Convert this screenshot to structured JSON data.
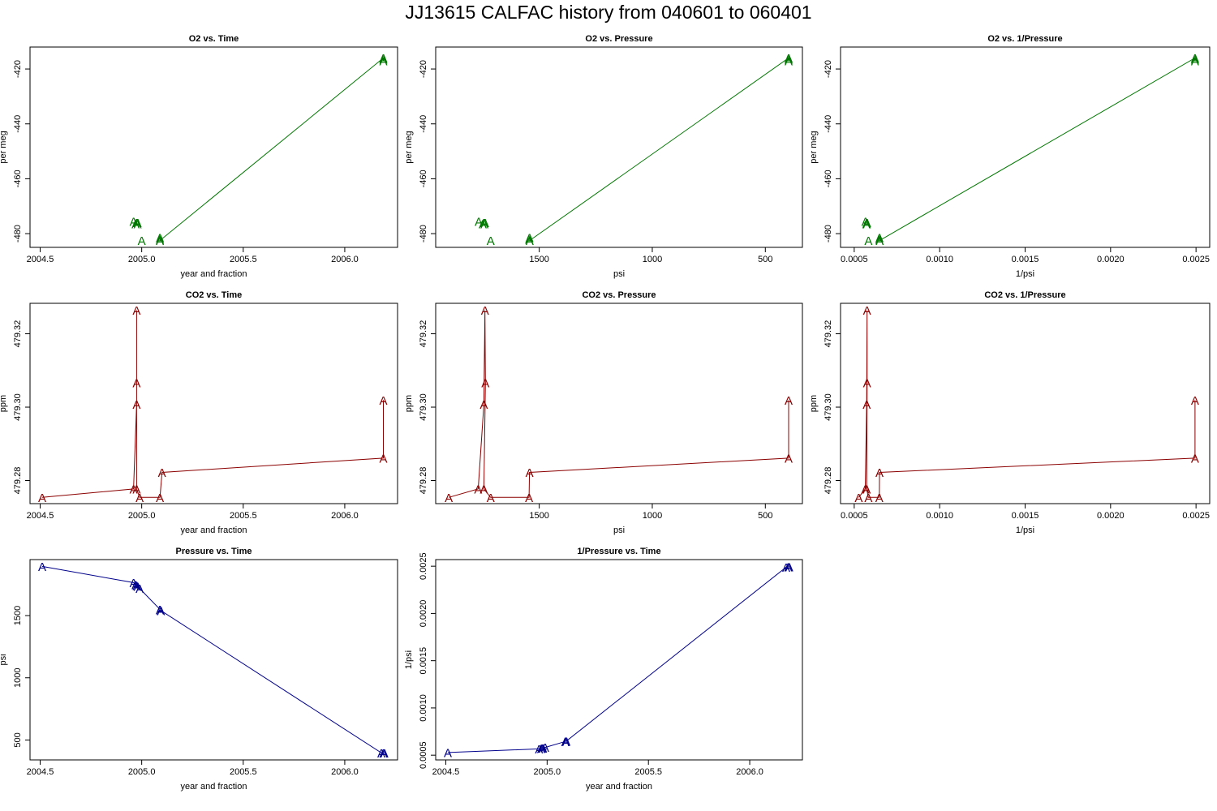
{
  "title": "JJ13615   CALFAC history from  040601  to  060401",
  "colors": {
    "o2": "#007700",
    "co2": "#8b0000",
    "pressure": "#00008b",
    "axis": "#000000"
  },
  "chart_data": [
    {
      "type": "line",
      "title": "O2 vs. Time",
      "xlabel": "year and fraction",
      "ylabel": "per meg",
      "marker": "A",
      "color": "#007700",
      "xlim": [
        2004.45,
        2006.26
      ],
      "ylim": [
        -485.0,
        -412.0
      ],
      "xticks": [
        2004.5,
        2005.0,
        2005.5,
        2006.0
      ],
      "xtick_labels": [
        "2004.5",
        "2005.0",
        "2005.5",
        "2006.0"
      ],
      "yticks": [
        -420,
        -440,
        -460,
        -480
      ],
      "ytick_labels": [
        "-420",
        "-440",
        "-460",
        "-480"
      ],
      "x": [
        2004.96,
        2004.97,
        2004.975,
        2004.98,
        2004.98,
        2005.0,
        2005.09,
        2005.09,
        2005.09,
        2006.19,
        2006.19,
        2006.19
      ],
      "y": [
        -475.5,
        -476.5,
        -476.0,
        -476.5,
        -476.0,
        -482.5,
        -482.0,
        -481.5,
        -482.5,
        -416.0,
        -416.5,
        -417.0
      ],
      "line_from": 6
    },
    {
      "type": "line",
      "title": "O2 vs. Pressure",
      "xlabel": "psi",
      "ylabel": "per meg",
      "marker": "A",
      "color": "#007700",
      "xlim": [
        1958.0,
        336.0
      ],
      "ylim": [
        -485.0,
        -412.0
      ],
      "xticks": [
        1500,
        1000,
        500
      ],
      "xtick_labels": [
        "1500",
        "1000",
        "500"
      ],
      "yticks": [
        -420,
        -440,
        -460,
        -480
      ],
      "ytick_labels": [
        "-420",
        "-440",
        "-460",
        "-480"
      ],
      "x": [
        1768,
        1750,
        1745,
        1742,
        1740,
        1715,
        1545,
        1543,
        1542,
        397,
        397,
        397
      ],
      "y": [
        -475.5,
        -476.5,
        -476.0,
        -476.5,
        -476.0,
        -482.5,
        -482.0,
        -481.5,
        -482.5,
        -416.0,
        -416.5,
        -417.0
      ],
      "line_from": 6
    },
    {
      "type": "line",
      "title": "O2 vs. 1/Pressure",
      "xlabel": "1/psi",
      "ylabel": "per meg",
      "marker": "A",
      "color": "#007700",
      "xlim": [
        0.00042,
        0.00258
      ],
      "ylim": [
        -485.0,
        -412.0
      ],
      "xticks": [
        0.0005,
        0.001,
        0.0015,
        0.002,
        0.0025
      ],
      "xtick_labels": [
        "0.0005",
        "0.0010",
        "0.0015",
        "0.0020",
        "0.0025"
      ],
      "yticks": [
        -420,
        -440,
        -460,
        -480
      ],
      "ytick_labels": [
        "-420",
        "-440",
        "-460",
        "-480"
      ],
      "x": [
        0.000566,
        0.000571,
        0.000573,
        0.000574,
        0.000575,
        0.000583,
        0.000647,
        0.000648,
        0.000649,
        0.002494,
        0.002494,
        0.002494
      ],
      "y": [
        -475.5,
        -476.5,
        -476.0,
        -476.5,
        -476.0,
        -482.5,
        -482.0,
        -481.5,
        -482.5,
        -416.0,
        -416.5,
        -417.0
      ],
      "line_from": 6
    },
    {
      "type": "line",
      "title": "CO2 vs. Time",
      "xlabel": "year and fraction",
      "ylabel": "ppm",
      "marker": "A",
      "color": "#8b0000",
      "xlim": [
        2004.45,
        2006.26
      ],
      "ylim": [
        479.2737,
        479.3283
      ],
      "xticks": [
        2004.5,
        2005.0,
        2005.5,
        2006.0
      ],
      "xtick_labels": [
        "2004.5",
        "2005.0",
        "2005.5",
        "2006.0"
      ],
      "yticks": [
        479.28,
        479.3,
        479.32
      ],
      "ytick_labels": [
        "479.28",
        "479.30",
        "479.32"
      ],
      "x": [
        2004.51,
        2004.96,
        2004.975,
        2004.975,
        2004.975,
        2004.975,
        2004.99,
        2005.09,
        2005.1,
        2006.19,
        2006.19
      ],
      "y": [
        479.2754,
        479.2777,
        479.3008,
        479.3264,
        479.3066,
        479.2777,
        479.2754,
        479.2754,
        479.2822,
        479.2861,
        479.3019
      ],
      "line_from": 0
    },
    {
      "type": "line",
      "title": "CO2 vs. Pressure",
      "xlabel": "psi",
      "ylabel": "ppm",
      "marker": "A",
      "color": "#8b0000",
      "xlim": [
        1958.0,
        336.0
      ],
      "ylim": [
        479.2737,
        479.3283
      ],
      "xticks": [
        1500,
        1000,
        500
      ],
      "xtick_labels": [
        "1500",
        "1000",
        "500"
      ],
      "yticks": [
        479.28,
        479.3,
        479.32
      ],
      "ytick_labels": [
        "479.28",
        "479.30",
        "479.32"
      ],
      "x": [
        1900,
        1770,
        1745,
        1740,
        1738,
        1745,
        1715,
        1545,
        1543,
        397,
        397
      ],
      "y": [
        479.2754,
        479.2777,
        479.3008,
        479.3264,
        479.3066,
        479.2777,
        479.2754,
        479.2754,
        479.2822,
        479.2861,
        479.3019
      ],
      "line_from": 0
    },
    {
      "type": "line",
      "title": "CO2 vs. 1/Pressure",
      "xlabel": "1/psi",
      "ylabel": "ppm",
      "marker": "A",
      "color": "#8b0000",
      "xlim": [
        0.00042,
        0.00258
      ],
      "ylim": [
        479.2737,
        479.3283
      ],
      "xticks": [
        0.0005,
        0.001,
        0.0015,
        0.002,
        0.0025
      ],
      "xtick_labels": [
        "0.0005",
        "0.0010",
        "0.0015",
        "0.0020",
        "0.0025"
      ],
      "yticks": [
        479.28,
        479.3,
        479.32
      ],
      "ytick_labels": [
        "479.28",
        "479.30",
        "479.32"
      ],
      "x": [
        0.000526,
        0.000565,
        0.000573,
        0.000575,
        0.000575,
        0.000573,
        0.000583,
        0.000647,
        0.000648,
        0.002494,
        0.002494
      ],
      "y": [
        479.2754,
        479.2777,
        479.3008,
        479.3264,
        479.3066,
        479.2777,
        479.2754,
        479.2754,
        479.2822,
        479.2861,
        479.3019
      ],
      "line_from": 0
    },
    {
      "type": "line",
      "title": "Pressure vs. Time",
      "xlabel": "year and fraction",
      "ylabel": "psi",
      "marker": "A",
      "color": "#00008b",
      "xlim": [
        2004.45,
        2006.26
      ],
      "ylim": [
        340.0,
        1950.0
      ],
      "xticks": [
        2004.5,
        2005.0,
        2005.5,
        2006.0
      ],
      "xtick_labels": [
        "2004.5",
        "2005.0",
        "2005.5",
        "2006.0"
      ],
      "yticks": [
        500,
        1000,
        1500
      ],
      "ytick_labels": [
        "500",
        "1000",
        "1500"
      ],
      "x": [
        2004.51,
        2004.96,
        2004.97,
        2004.975,
        2004.98,
        2004.99,
        2005.09,
        2005.09,
        2005.095,
        2006.18,
        2006.19,
        2006.195
      ],
      "y": [
        1895,
        1765,
        1748,
        1742,
        1735,
        1718,
        1550,
        1545,
        1540,
        397,
        397,
        397
      ],
      "line_from": 0
    },
    {
      "type": "line",
      "title": "1/Pressure vs. Time",
      "xlabel": "year and fraction",
      "ylabel": "1/psi",
      "marker": "A",
      "color": "#00008b",
      "xlim": [
        2004.45,
        2006.26
      ],
      "ylim": [
        0.00045,
        0.00257
      ],
      "xticks": [
        2004.5,
        2005.0,
        2005.5,
        2006.0
      ],
      "xtick_labels": [
        "2004.5",
        "2005.0",
        "2005.5",
        "2006.0"
      ],
      "yticks": [
        0.0005,
        0.001,
        0.0015,
        0.002,
        0.0025
      ],
      "ytick_labels": [
        "0.0005",
        "0.0010",
        "0.0015",
        "0.0020",
        "0.0025"
      ],
      "x": [
        2004.51,
        2004.96,
        2004.97,
        2004.975,
        2004.98,
        2004.99,
        2005.09,
        2005.09,
        2005.095,
        2006.18,
        2006.19,
        2006.195
      ],
      "y": [
        0.000528,
        0.000567,
        0.000572,
        0.000574,
        0.000576,
        0.000582,
        0.000645,
        0.000647,
        0.000649,
        0.00249,
        0.002494,
        0.002494
      ],
      "line_from": 0
    }
  ]
}
